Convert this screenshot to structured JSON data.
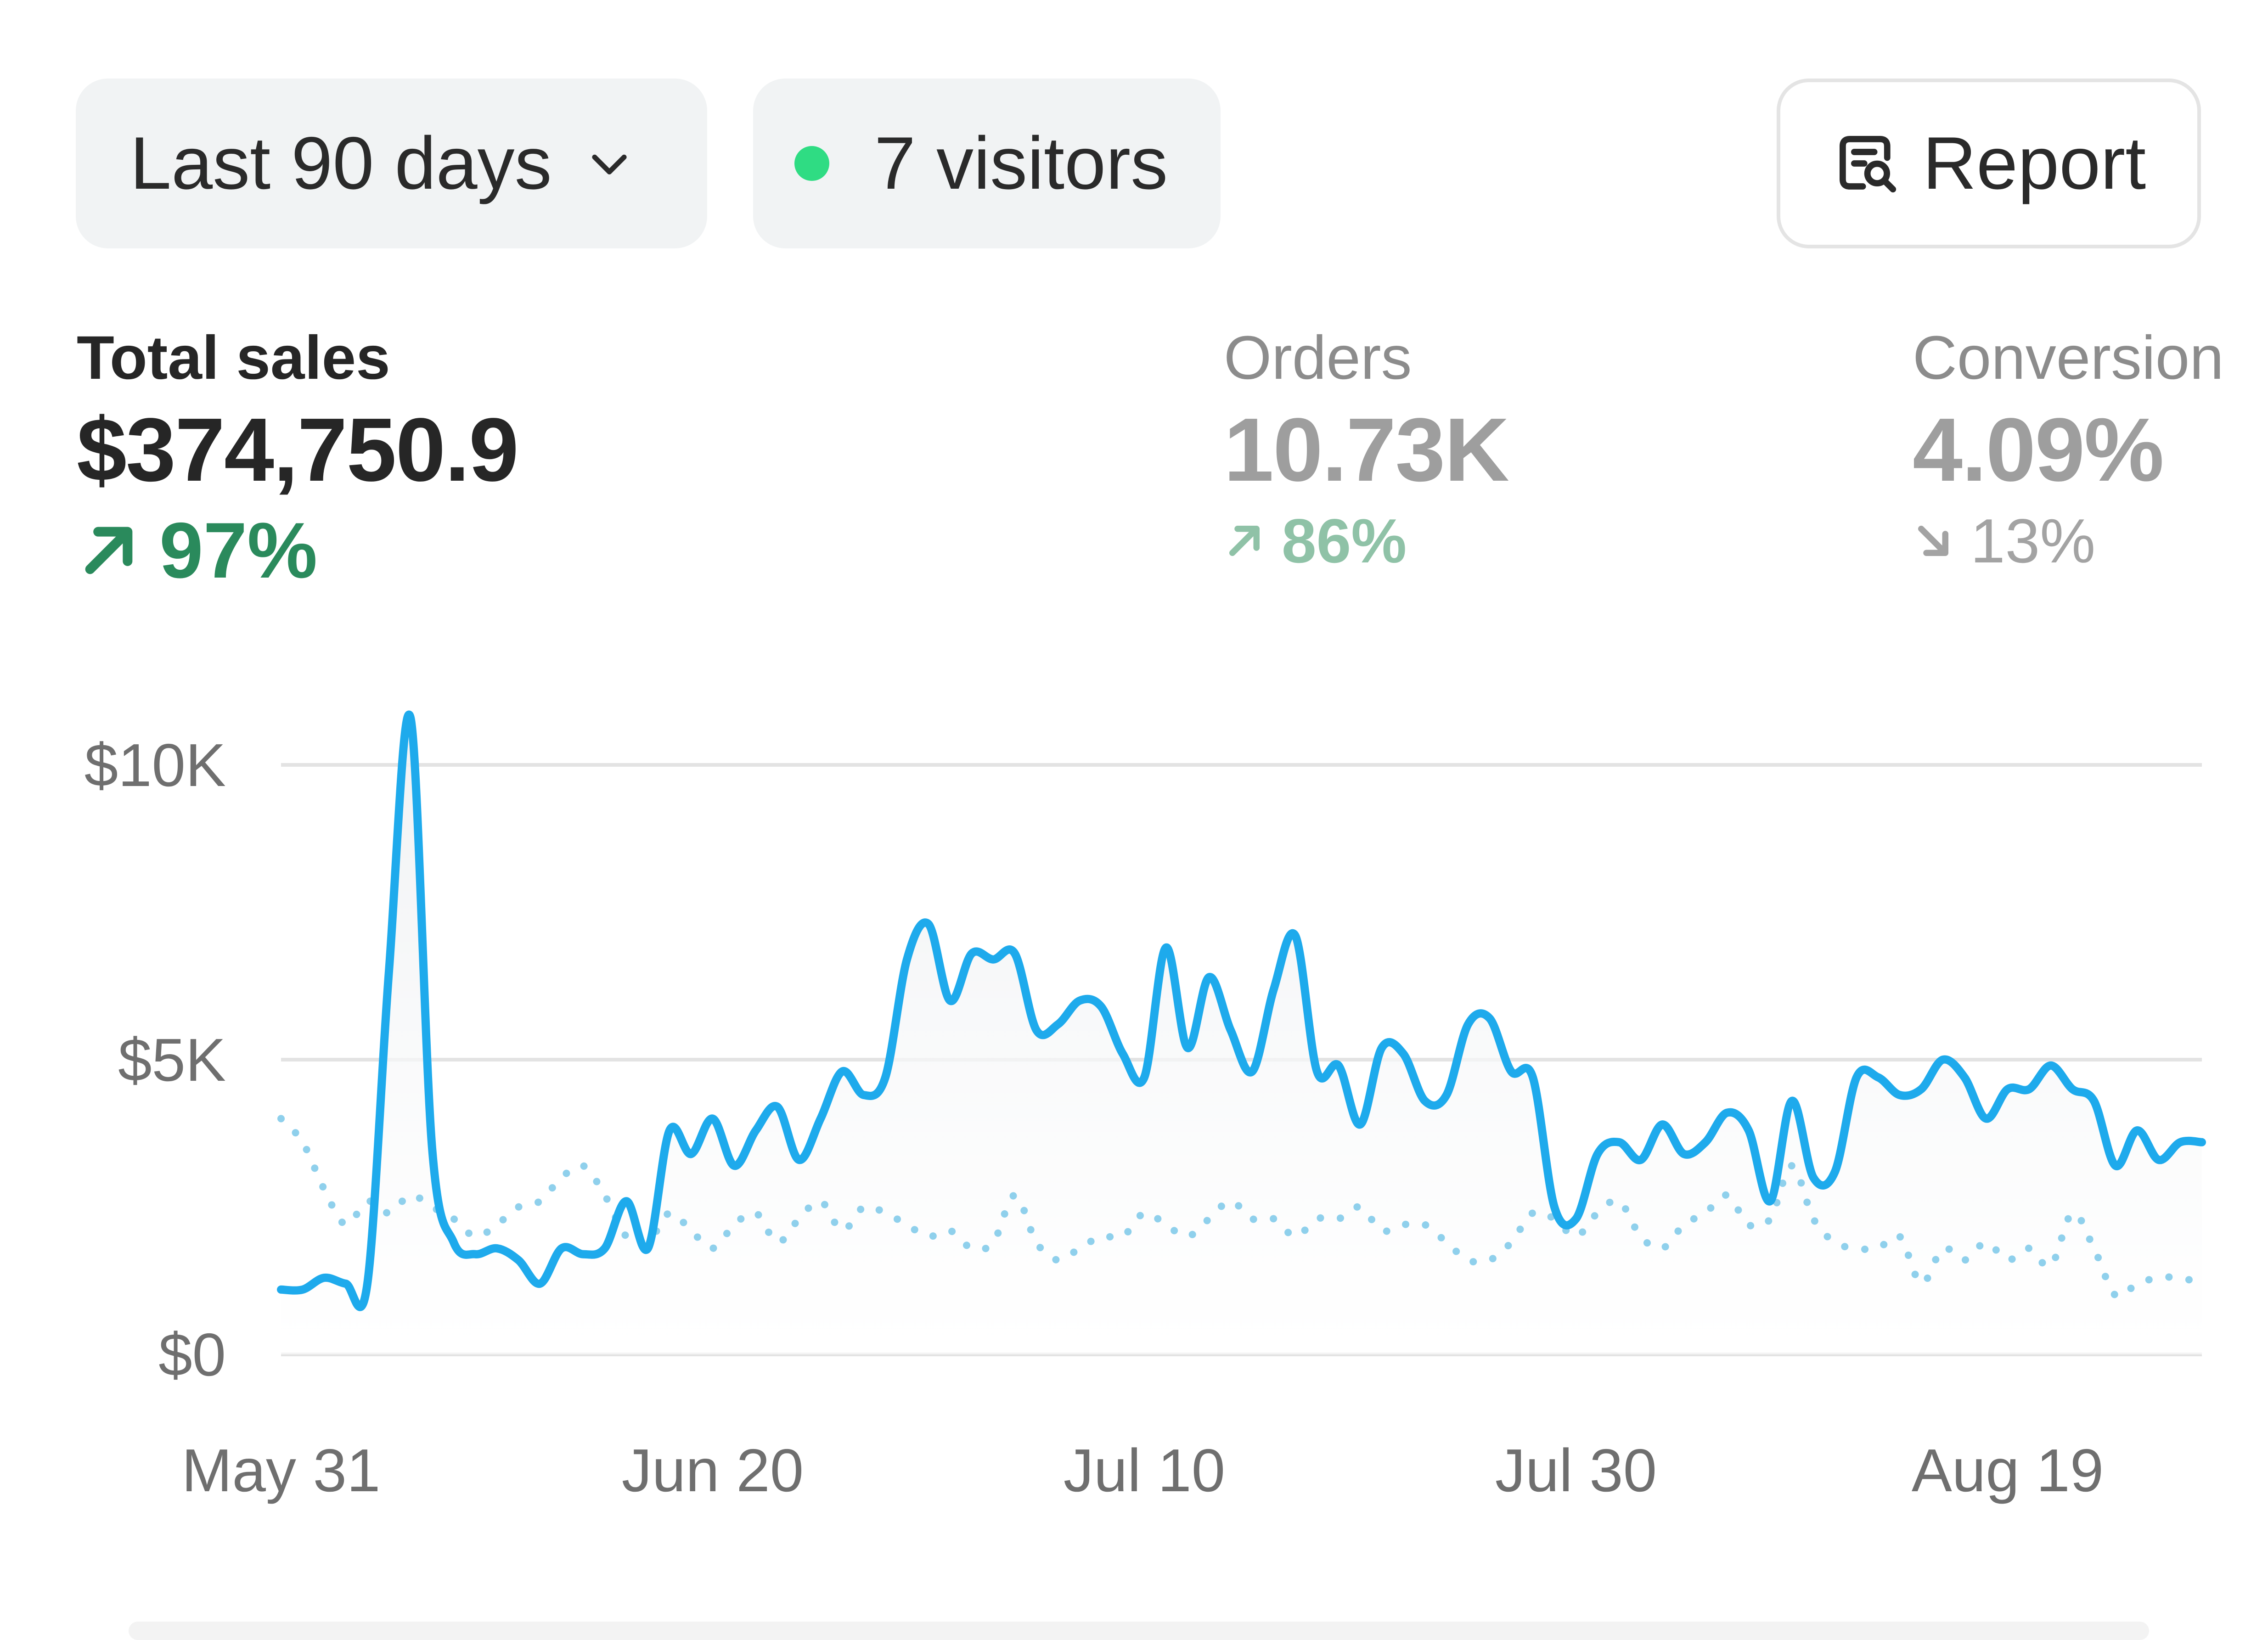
{
  "header": {
    "range_label": "Last 90 days",
    "visitors_label": "7 visitors",
    "report_label": "Report"
  },
  "metrics": {
    "total_sales": {
      "label": "Total sales",
      "value": "$374,750.9",
      "change": "97%",
      "direction": "up"
    },
    "orders": {
      "label": "Orders",
      "value": "10.73K",
      "change": "86%",
      "direction": "up"
    },
    "conversion": {
      "label": "Conversion",
      "value": "4.09%",
      "change": "13%",
      "direction": "down"
    }
  },
  "colors": {
    "current_series": "#1eaaec",
    "previous_series": "#8fd0ec",
    "positive": "#2a8a5c",
    "live_dot": "#2fdc83"
  },
  "chart_data": {
    "type": "line",
    "y_ticks": [
      "$10K",
      "$5K",
      "$0"
    ],
    "y_tick_values": [
      10000,
      5000,
      0
    ],
    "ylim": [
      0,
      10000
    ],
    "x_ticks": [
      "May 31",
      "Jun 20",
      "Jul 10",
      "Jul 30",
      "Aug 19"
    ],
    "x_tick_values": [
      0,
      20,
      40,
      60,
      80
    ],
    "xlim": [
      0,
      89
    ],
    "grid": true,
    "series": [
      {
        "style": "solid",
        "values": [
          1100,
          1100,
          1300,
          1200,
          1200,
          6500,
          10800,
          3500,
          1900,
          1700,
          1800,
          1600,
          1200,
          1800,
          1700,
          1800,
          2600,
          1800,
          3800,
          3400,
          4000,
          3200,
          3800,
          4200,
          3300,
          4000,
          4800,
          4400,
          4700,
          6700,
          7300,
          6000,
          6800,
          6700,
          6800,
          5500,
          5600,
          6000,
          5900,
          5100,
          4700,
          6900,
          5200,
          6400,
          5500,
          4800,
          6200,
          7100,
          4800,
          4900,
          3900,
          5200,
          5100,
          4300,
          4400,
          5600,
          5700,
          4800,
          4700,
          2500,
          2300,
          3400,
          3600,
          3300,
          3900,
          3400,
          3600,
          4100,
          3800,
          2600,
          4300,
          3000,
          3100,
          4700,
          4700,
          4400,
          4500,
          5000,
          4700,
          4000,
          4500,
          4500,
          4900,
          4500,
          4300,
          3200,
          3800,
          3300,
          3600,
          3600
        ]
      },
      {
        "style": "dotted",
        "values": [
          4000,
          3600,
          2800,
          2200,
          2600,
          2400,
          2700,
          2500,
          2300,
          2000,
          2200,
          2500,
          2600,
          3000,
          3200,
          2700,
          2000,
          1900,
          2400,
          2100,
          1800,
          2200,
          2400,
          1900,
          2300,
          2600,
          2100,
          2500,
          2400,
          2200,
          2000,
          2100,
          1800,
          1900,
          2700,
          1900,
          1600,
          1800,
          2000,
          2000,
          2400,
          2200,
          2000,
          2300,
          2600,
          2300,
          2300,
          2000,
          2300,
          2300,
          2500,
          2100,
          2200,
          2200,
          1900,
          1600,
          1600,
          1900,
          2400,
          2300,
          2000,
          2400,
          2600,
          2000,
          1800,
          2200,
          2400,
          2700,
          2200,
          2300,
          3200,
          2300,
          1900,
          1800,
          1800,
          2000,
          1200,
          1800,
          1600,
          1900,
          1600,
          1800,
          1500,
          2400,
          1800,
          1000,
          1200,
          1300,
          1300,
          1200
        ]
      }
    ]
  }
}
